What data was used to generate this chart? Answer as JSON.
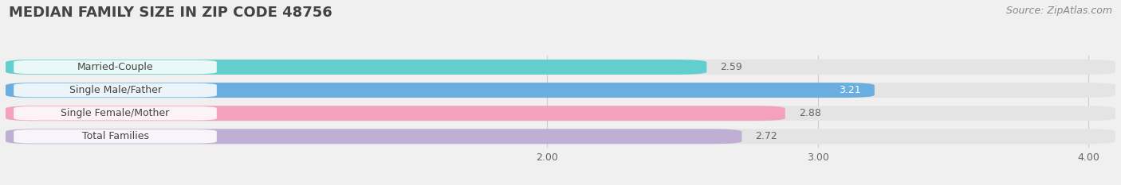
{
  "title": "MEDIAN FAMILY SIZE IN ZIP CODE 48756",
  "source": "Source: ZipAtlas.com",
  "categories": [
    "Married-Couple",
    "Single Male/Father",
    "Single Female/Mother",
    "Total Families"
  ],
  "values": [
    2.59,
    3.21,
    2.88,
    2.72
  ],
  "bar_colors": [
    "#62cece",
    "#6aaee0",
    "#f4a0bf",
    "#c0afd4"
  ],
  "label_bg_color": "#ffffff",
  "xlim": [
    0,
    4.1
  ],
  "xticks": [
    2.0,
    3.0,
    4.0
  ],
  "background_color": "#f0f0f0",
  "bar_background_color": "#e4e4e4",
  "title_fontsize": 13,
  "label_fontsize": 9,
  "value_fontsize": 9,
  "source_fontsize": 9,
  "value_color_inside": "#ffffff",
  "value_color_outside": "#666666"
}
